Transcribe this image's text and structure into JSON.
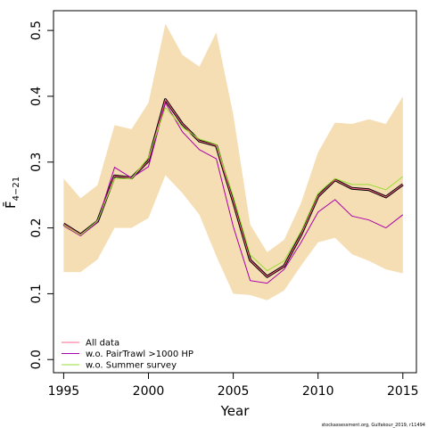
{
  "chart_data": {
    "type": "line",
    "xlabel": "Year",
    "ylabel": "F̄",
    "ylabel_subscript": "4−21",
    "credit": "stockassessment.org, Gulfakour_2019, r11494",
    "xlim": [
      1994.4,
      2015.8
    ],
    "ylim": [
      -0.02,
      0.53
    ],
    "xticks": [
      1995,
      2000,
      2005,
      2010,
      2015
    ],
    "yticks": [
      0.0,
      0.1,
      0.2,
      0.3,
      0.4,
      0.5
    ],
    "ytick_labels": [
      "0.0",
      "0.1",
      "0.2",
      "0.3",
      "0.4",
      "0.5"
    ],
    "x": [
      1995,
      1996,
      1997,
      1998,
      1999,
      2000,
      2001,
      2002,
      2003,
      2004,
      2005,
      2006,
      2007,
      2008,
      2009,
      2010,
      2011,
      2012,
      2013,
      2014,
      2015
    ],
    "band": {
      "color": "#f5deb3",
      "lower": [
        0.133,
        0.133,
        0.152,
        0.2,
        0.2,
        0.215,
        0.28,
        0.253,
        0.22,
        0.157,
        0.1,
        0.098,
        0.09,
        0.105,
        0.143,
        0.178,
        0.185,
        0.16,
        0.15,
        0.137,
        0.131
      ],
      "upper": [
        0.275,
        0.245,
        0.265,
        0.356,
        0.35,
        0.39,
        0.51,
        0.463,
        0.445,
        0.497,
        0.372,
        0.205,
        0.163,
        0.182,
        0.238,
        0.315,
        0.36,
        0.358,
        0.365,
        0.358,
        0.4
      ]
    },
    "series": [
      {
        "name": "All data",
        "color": "#ff6688",
        "values": [
          0.206,
          0.19,
          0.21,
          0.279,
          0.276,
          0.302,
          0.395,
          0.358,
          0.332,
          0.325,
          0.24,
          0.151,
          0.126,
          0.142,
          0.19,
          0.248,
          0.273,
          0.26,
          0.258,
          0.247,
          0.266
        ]
      },
      {
        "name": "w.o. PairTrawl >1000 HP",
        "color": "#aa00aa",
        "values": [
          0.203,
          0.188,
          0.209,
          0.292,
          0.276,
          0.293,
          0.39,
          0.346,
          0.319,
          0.305,
          0.202,
          0.12,
          0.116,
          0.137,
          0.178,
          0.224,
          0.243,
          0.218,
          0.212,
          0.2,
          0.22
        ]
      },
      {
        "name": "w.o. Summer survey",
        "color": "#99dd33",
        "values": [
          0.204,
          0.189,
          0.211,
          0.275,
          0.275,
          0.307,
          0.383,
          0.353,
          0.335,
          0.327,
          0.248,
          0.159,
          0.135,
          0.15,
          0.195,
          0.253,
          0.275,
          0.266,
          0.266,
          0.258,
          0.278
        ]
      }
    ],
    "main_line": {
      "color": "#000000",
      "values": [
        0.206,
        0.19,
        0.21,
        0.279,
        0.276,
        0.302,
        0.395,
        0.358,
        0.332,
        0.325,
        0.24,
        0.151,
        0.126,
        0.142,
        0.19,
        0.248,
        0.273,
        0.26,
        0.258,
        0.247,
        0.266
      ]
    },
    "legend_position": "bottom-left",
    "grid": false
  }
}
